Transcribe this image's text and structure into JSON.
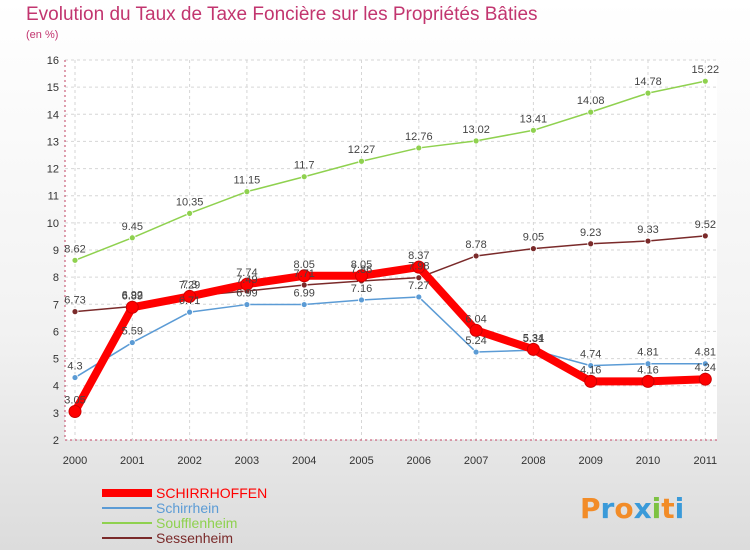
{
  "chart_data": {
    "type": "line",
    "title": "Evolution du Taux de Taxe Foncière sur les Propriétés Bâties",
    "unit": "(en %)",
    "x": [
      "2000",
      "2001",
      "2002",
      "2003",
      "2004",
      "2005",
      "2006",
      "2007",
      "2008",
      "2009",
      "2010",
      "2011"
    ],
    "ylim": [
      2,
      16
    ],
    "yticks": [
      "2",
      "3",
      "4",
      "5",
      "6",
      "7",
      "8",
      "9",
      "10",
      "11",
      "12",
      "13",
      "14",
      "15",
      "16"
    ],
    "grid": true,
    "legend_position": "bottom-left",
    "series": [
      {
        "name": "SCHIRRHOFFEN",
        "color": "#ff0000",
        "values": [
          3.05,
          6.89,
          7.29,
          7.74,
          8.05,
          8.05,
          8.37,
          6.04,
          5.34,
          4.16,
          4.16,
          4.24
        ],
        "labels": [
          "3.05",
          "6.89",
          "7.29",
          "7.74",
          "8.05",
          "8.05",
          "8.37",
          "6.04",
          "5.34",
          "4.16",
          "4.16",
          "4.24"
        ]
      },
      {
        "name": "Schirrhein",
        "color": "#5b9bd5",
        "values": [
          4.3,
          5.59,
          6.71,
          6.99,
          6.99,
          7.16,
          7.27,
          5.24,
          5.31,
          4.74,
          4.81,
          4.81
        ],
        "labels": [
          "4.3",
          "5.59",
          "6.71",
          "6.99",
          "6.99",
          "7.16",
          "7.27",
          "5.24",
          "5.31",
          "4.74",
          "4.81",
          "4.81"
        ]
      },
      {
        "name": "Soufflenheim",
        "color": "#8fd14f",
        "values": [
          8.62,
          9.45,
          10.35,
          11.15,
          11.7,
          12.27,
          12.76,
          13.02,
          13.41,
          14.08,
          14.78,
          15.22
        ],
        "labels": [
          "8.62",
          "9.45",
          "10.35",
          "11.15",
          "11.7",
          "12.27",
          "12.76",
          "13.02",
          "13.41",
          "14.08",
          "14.78",
          "15.22"
        ]
      },
      {
        "name": "Sessenheim",
        "color": "#7a2a2a",
        "values": [
          6.73,
          6.92,
          7.3,
          7.49,
          7.71,
          7.86,
          7.98,
          8.78,
          9.05,
          9.23,
          9.33,
          9.52
        ],
        "labels": [
          "6.73",
          "6.92",
          "7.3",
          "7.49",
          "7.71",
          "7.86",
          "7.98",
          "8.78",
          "9.05",
          "9.23",
          "9.33",
          "9.52"
        ]
      }
    ]
  },
  "logo": {
    "text": "Proxiti"
  }
}
